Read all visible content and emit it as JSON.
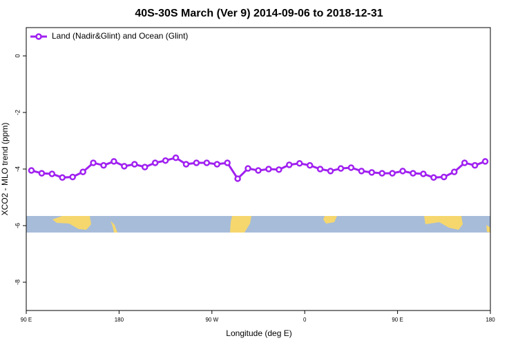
{
  "chart_data": {
    "type": "line",
    "title": "40S-30S March (Ver 9)   2014-09-06 to 2018-12-31",
    "x_label": "Longitude (deg E)",
    "y_label": "XCO2 - MLO trend (ppm)",
    "x": [
      95,
      105,
      115,
      125,
      135,
      145,
      155,
      165,
      175,
      185,
      195,
      205,
      215,
      225,
      235,
      245,
      255,
      265,
      275,
      285,
      295,
      305,
      315,
      325,
      335,
      345,
      355,
      365,
      375,
      385,
      395,
      405,
      415,
      425,
      435,
      445,
      455,
      465,
      475,
      485,
      495,
      505,
      515,
      525,
      535
    ],
    "series": [
      {
        "name": "Land (Nadir&Glint) and Ocean (Glint)",
        "color": "#a020f0",
        "values": [
          -4.05,
          -4.15,
          -4.17,
          -4.3,
          -4.28,
          -4.1,
          -3.78,
          -3.87,
          -3.73,
          -3.9,
          -3.83,
          -3.93,
          -3.78,
          -3.7,
          -3.6,
          -3.83,
          -3.78,
          -3.78,
          -3.83,
          -3.78,
          -4.34,
          -3.98,
          -4.05,
          -4.0,
          -4.02,
          -3.85,
          -3.8,
          -3.87,
          -4.0,
          -4.07,
          -3.98,
          -3.95,
          -4.07,
          -4.12,
          -4.15,
          -4.15,
          -4.07,
          -4.15,
          -4.17,
          -4.3,
          -4.28,
          -4.1,
          -3.78,
          -3.87,
          -3.73
        ]
      }
    ],
    "xlim": [
      90,
      540
    ],
    "xticks": [
      {
        "value": 90,
        "label": "90 E"
      },
      180,
      {
        "value": 270,
        "label": "90 W"
      },
      {
        "value": 360,
        "label": "0"
      },
      {
        "value": 450,
        "label": "90 E"
      },
      {
        "value": 540,
        "label": "180"
      }
    ],
    "ylim": [
      -9,
      1
    ],
    "yticks": [
      0,
      -2,
      -4,
      -6,
      -8
    ],
    "legend": "top-left"
  }
}
